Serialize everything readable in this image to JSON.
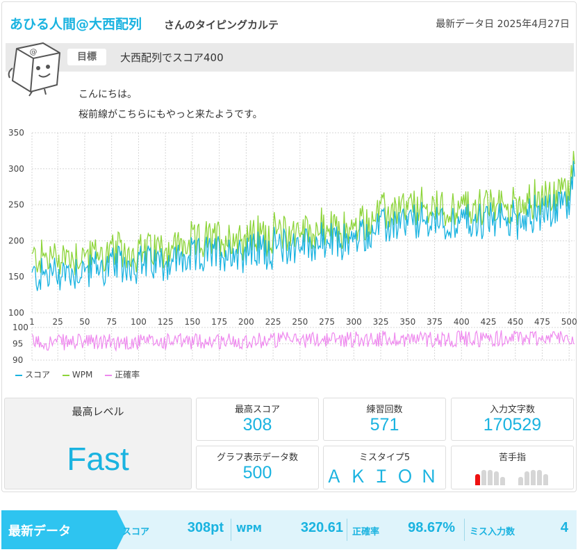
{
  "header": {
    "user_name": "あひる人間@大西配列",
    "karte_label": "さんのタイピングカルテ",
    "update_date": "最新データ日 2025年4月27日"
  },
  "goal": {
    "tag": "目標",
    "text": "大西配列でスコア400"
  },
  "message": {
    "line1": "こんにちは。",
    "line2": "桜前線がこちらにもやっと来たようです。"
  },
  "chart_data": {
    "type": "line",
    "x_range": [
      1,
      505
    ],
    "x_ticks": [
      1,
      25,
      50,
      75,
      100,
      125,
      150,
      175,
      200,
      225,
      250,
      275,
      300,
      325,
      350,
      375,
      400,
      425,
      450,
      475,
      500
    ],
    "y_main_range": [
      100,
      350
    ],
    "y_main_ticks": [
      100,
      150,
      200,
      250,
      300,
      350
    ],
    "y_acc_range": [
      90,
      100
    ],
    "y_acc_ticks": [
      90,
      95,
      100
    ],
    "grid": true,
    "legend_position": "bottom-left",
    "colors": {
      "score": "#1ab3e0",
      "wpm": "#8dd43a",
      "accuracy": "#ee88ee"
    },
    "series": [
      {
        "name": "スコア",
        "trend": [
          [
            1,
            150
          ],
          [
            50,
            160
          ],
          [
            100,
            168
          ],
          [
            150,
            175
          ],
          [
            175,
            185
          ],
          [
            200,
            185
          ],
          [
            250,
            195
          ],
          [
            300,
            200
          ],
          [
            320,
            215
          ],
          [
            350,
            225
          ],
          [
            400,
            225
          ],
          [
            450,
            230
          ],
          [
            490,
            245
          ],
          [
            500,
            250
          ],
          [
            505,
            305
          ]
        ]
      },
      {
        "name": "WPM",
        "trend": [
          [
            1,
            175
          ],
          [
            50,
            180
          ],
          [
            100,
            185
          ],
          [
            150,
            195
          ],
          [
            175,
            205
          ],
          [
            200,
            205
          ],
          [
            250,
            215
          ],
          [
            300,
            215
          ],
          [
            320,
            235
          ],
          [
            350,
            245
          ],
          [
            400,
            245
          ],
          [
            450,
            250
          ],
          [
            490,
            265
          ],
          [
            500,
            270
          ],
          [
            505,
            320
          ]
        ]
      },
      {
        "name": "正確率",
        "trend": [
          [
            1,
            95.5
          ],
          [
            100,
            95.5
          ],
          [
            200,
            96.0
          ],
          [
            300,
            96.5
          ],
          [
            400,
            96.5
          ],
          [
            505,
            97.0
          ]
        ]
      }
    ]
  },
  "stats": {
    "max_level": {
      "label": "最高レベル",
      "value": "Fast"
    },
    "max_score": {
      "label": "最高スコア",
      "value": "308"
    },
    "practice_count": {
      "label": "練習回数",
      "value": "571"
    },
    "chars_typed": {
      "label": "入力文字数",
      "value": "170529"
    },
    "graph_points": {
      "label": "グラフ表示データ数",
      "value": "500"
    },
    "mistype5": {
      "label": "ミスタイプ5",
      "value": "ＡＫＩＯＮ"
    },
    "weak_finger": {
      "label": "苦手指",
      "weak_index": 0,
      "active_color": "#ee1111",
      "inactive_color": "#d6d6d6"
    }
  },
  "latest": {
    "title": "最新データ",
    "score_label": "スコア",
    "score_value": "308pt",
    "wpm_label": "WPM",
    "wpm_value": "320.61",
    "accuracy_label": "正確率",
    "accuracy_value": "98.67%",
    "miss_label": "ミス入力数",
    "miss_value": "4",
    "head_color": "#2ec4f0"
  }
}
